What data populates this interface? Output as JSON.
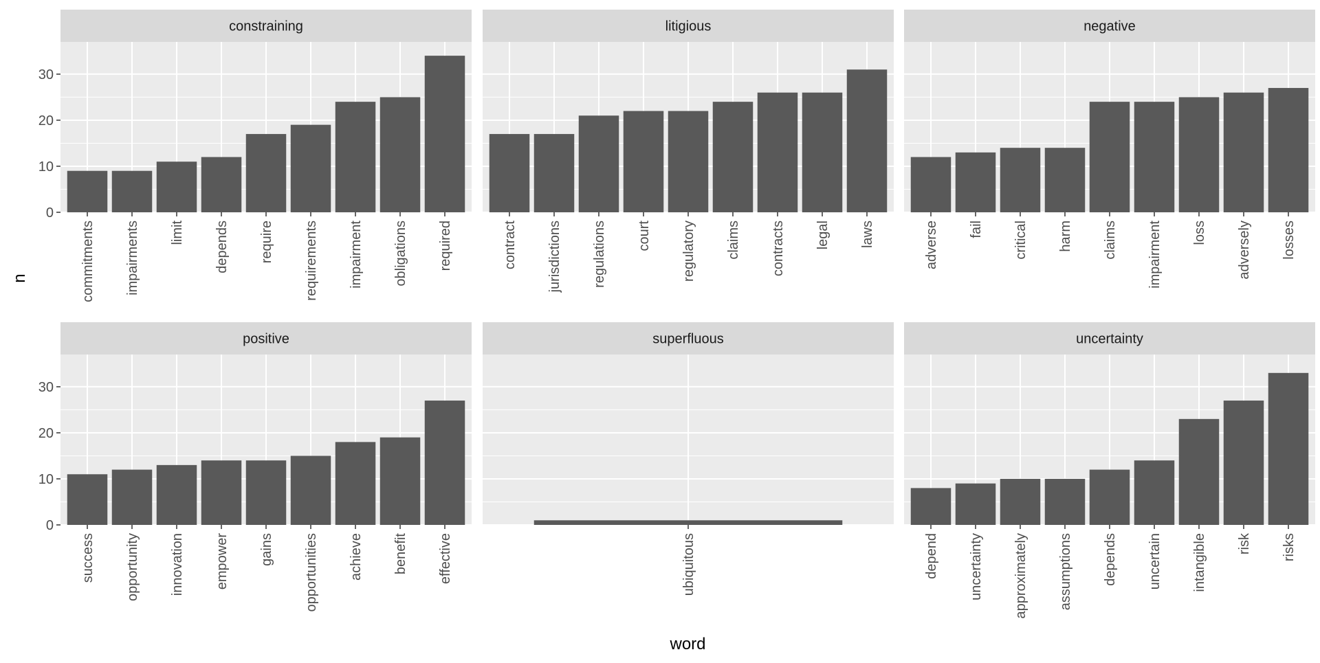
{
  "chart_data": {
    "type": "bar",
    "xlabel": "word",
    "ylabel": "n",
    "ylim": [
      0,
      37
    ],
    "yticks": [
      0,
      10,
      20,
      30
    ],
    "grid": true,
    "facet_layout": "3 columns x 2 rows",
    "colors": {
      "bar": "#595959",
      "panel_bg": "#EBEBEB",
      "strip_bg": "#D9D9D9",
      "grid": "#FFFFFF",
      "tick_text": "#4D4D4D",
      "axis_title": "#000000"
    },
    "facets": [
      {
        "title": "constraining",
        "categories": [
          "commitments",
          "impairments",
          "limit",
          "depends",
          "require",
          "requirements",
          "impairment",
          "obligations",
          "required"
        ],
        "values": [
          9,
          9,
          11,
          12,
          17,
          19,
          24,
          25,
          34
        ]
      },
      {
        "title": "litigious",
        "categories": [
          "contract",
          "jurisdictions",
          "regulations",
          "court",
          "regulatory",
          "claims",
          "contracts",
          "legal",
          "laws"
        ],
        "values": [
          17,
          17,
          21,
          22,
          22,
          24,
          26,
          26,
          31
        ]
      },
      {
        "title": "negative",
        "categories": [
          "adverse",
          "fail",
          "critical",
          "harm",
          "claims",
          "impairment",
          "loss",
          "adversely",
          "losses"
        ],
        "values": [
          12,
          13,
          14,
          14,
          24,
          24,
          25,
          26,
          27
        ]
      },
      {
        "title": "positive",
        "categories": [
          "success",
          "opportunity",
          "innovation",
          "empower",
          "gains",
          "opportunities",
          "achieve",
          "benefit",
          "effective"
        ],
        "values": [
          11,
          12,
          13,
          14,
          14,
          15,
          18,
          19,
          27
        ]
      },
      {
        "title": "superfluous",
        "categories": [
          "ubiquitous"
        ],
        "values": [
          1
        ]
      },
      {
        "title": "uncertainty",
        "categories": [
          "depend",
          "uncertainty",
          "approximately",
          "assumptions",
          "depends",
          "uncertain",
          "intangible",
          "risk",
          "risks"
        ],
        "values": [
          8,
          9,
          10,
          10,
          12,
          14,
          23,
          27,
          33
        ]
      }
    ]
  }
}
